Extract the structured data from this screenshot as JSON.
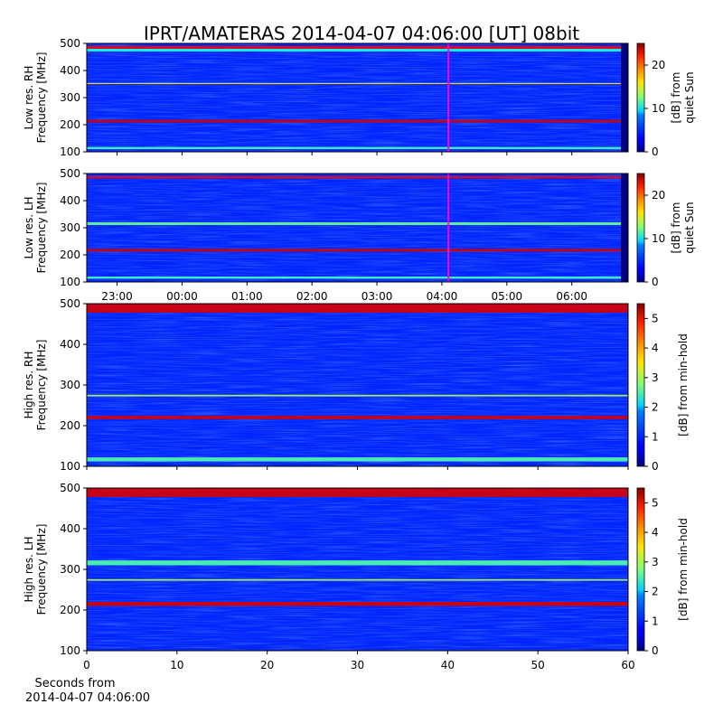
{
  "figure": {
    "title": "IPRT/AMATERAS 2014-04-07 04:06:00 [UT]   08bit",
    "xlabel_line1": "Seconds from",
    "xlabel_line2": "2014-04-07 04:06:00"
  },
  "colors": {
    "colormap": "jet",
    "cursor": "#ff00ff",
    "axis": "#000000"
  },
  "chart_data": [
    {
      "type": "heatmap",
      "id": "low-rh",
      "ylabel": [
        "Low res. RH",
        "Frequency [MHz]"
      ],
      "ylim": [
        100,
        500
      ],
      "y_ticks": [
        100,
        200,
        300,
        400,
        500
      ],
      "time_range": [
        "22:32",
        "06:52"
      ],
      "x_ticks": [
        "23:00",
        "00:00",
        "01:00",
        "02:00",
        "03:00",
        "04:00",
        "05:00",
        "06:00"
      ],
      "cursor_time": "04:06",
      "colorbar": {
        "label": [
          "[dB] from",
          "quiet Sun"
        ],
        "ticks": [
          0,
          10,
          20
        ],
        "range": [
          0,
          25
        ]
      },
      "bands": [
        {
          "freq": [
            480,
            490
          ],
          "level": 22
        },
        {
          "freq": [
            470,
            480
          ],
          "level": 10
        },
        {
          "freq": [
            350,
            354
          ],
          "level": 16
        },
        {
          "freq": [
            208,
            218
          ],
          "level": 23
        },
        {
          "freq": [
            110,
            118
          ],
          "level": 11
        }
      ]
    },
    {
      "type": "heatmap",
      "id": "low-lh",
      "ylabel": [
        "Low res. LH",
        "Frequency [MHz]"
      ],
      "ylim": [
        100,
        500
      ],
      "y_ticks": [
        100,
        200,
        300,
        400,
        500
      ],
      "time_range": [
        "22:32",
        "06:52"
      ],
      "x_ticks": [
        "23:00",
        "00:00",
        "01:00",
        "02:00",
        "03:00",
        "04:00",
        "05:00",
        "06:00"
      ],
      "cursor_time": "04:06",
      "colorbar": {
        "label": [
          "[dB] from",
          "quiet Sun"
        ],
        "ticks": [
          0,
          10,
          20
        ],
        "range": [
          0,
          25
        ]
      },
      "bands": [
        {
          "freq": [
            482,
            490
          ],
          "level": 22
        },
        {
          "freq": [
            310,
            320
          ],
          "level": 12
        },
        {
          "freq": [
            212,
            222
          ],
          "level": 23
        },
        {
          "freq": [
            112,
            120
          ],
          "level": 11
        }
      ]
    },
    {
      "type": "heatmap",
      "id": "high-rh",
      "ylabel": [
        "High res. RH",
        "Frequency [MHz]"
      ],
      "ylim": [
        100,
        500
      ],
      "y_ticks": [
        100,
        200,
        300,
        400,
        500
      ],
      "xlim": [
        0,
        60
      ],
      "x_ticks": [
        0,
        10,
        20,
        30,
        40,
        50,
        60
      ],
      "colorbar": {
        "label": [
          "[dB] from min-hold"
        ],
        "ticks": [
          0,
          1,
          2,
          3,
          4,
          5
        ],
        "range": [
          0,
          5.5
        ]
      },
      "bands": [
        {
          "freq": [
            478,
            500
          ],
          "level": 5
        },
        {
          "freq": [
            216,
            224
          ],
          "level": 5
        },
        {
          "freq": [
            272,
            276
          ],
          "level": 3
        },
        {
          "freq": [
            112,
            122
          ],
          "level": 2.5
        }
      ]
    },
    {
      "type": "heatmap",
      "id": "high-lh",
      "ylabel": [
        "High res. LH",
        "Frequency [MHz]"
      ],
      "ylim": [
        100,
        500
      ],
      "y_ticks": [
        100,
        200,
        300,
        400,
        500
      ],
      "xlim": [
        0,
        60
      ],
      "x_ticks": [
        0,
        10,
        20,
        30,
        40,
        50,
        60
      ],
      "colorbar": {
        "label": [
          "[dB] from min-hold"
        ],
        "ticks": [
          0,
          1,
          2,
          3,
          4,
          5
        ],
        "range": [
          0,
          5.5
        ]
      },
      "bands": [
        {
          "freq": [
            478,
            500
          ],
          "level": 5
        },
        {
          "freq": [
            310,
            322
          ],
          "level": 2.5
        },
        {
          "freq": [
            210,
            220
          ],
          "level": 5
        },
        {
          "freq": [
            272,
            276
          ],
          "level": 3
        }
      ]
    }
  ]
}
